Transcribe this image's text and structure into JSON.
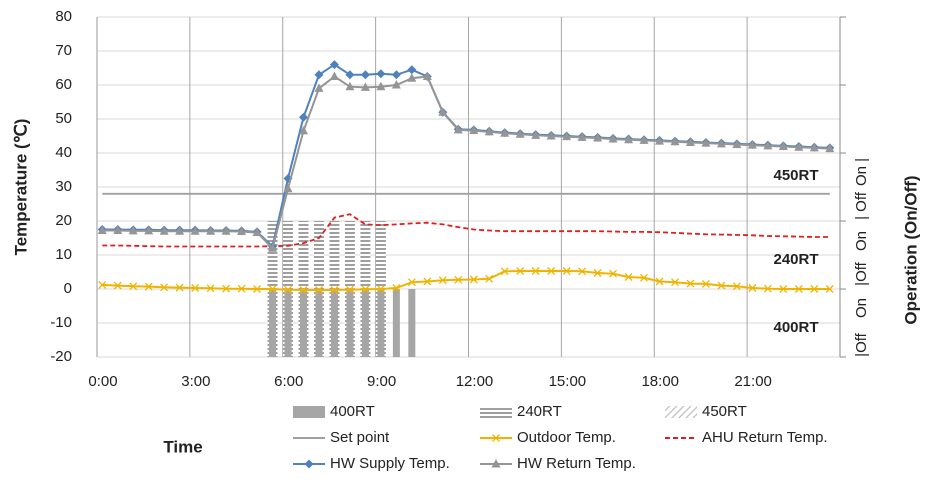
{
  "chart_data": {
    "type": "line",
    "x_label": "Time",
    "y_label": "Temperature (℃)",
    "y2_label": "Operation (On/Off)",
    "y2_labels": [
      "|Off",
      "On",
      "|Off",
      "On",
      "| Off",
      "On |"
    ],
    "annotations": [
      "450RT",
      "240RT",
      "400RT"
    ],
    "xlim": [
      0,
      24
    ],
    "xticks": [
      {
        "value": 0,
        "label": "0:00"
      },
      {
        "value": 3,
        "label": "3:00"
      },
      {
        "value": 6,
        "label": "6:00"
      },
      {
        "value": 9,
        "label": "9:00"
      },
      {
        "value": 12,
        "label": "12:00"
      },
      {
        "value": 15,
        "label": "15:00"
      },
      {
        "value": 18,
        "label": "18:00"
      },
      {
        "value": 21,
        "label": "21:00"
      }
    ],
    "ylim": [
      -20,
      80
    ],
    "yticks": [
      -20,
      -10,
      0,
      10,
      20,
      30,
      40,
      50,
      60,
      70,
      80
    ],
    "grid": true,
    "x": [
      0.17,
      0.67,
      1.17,
      1.67,
      2.17,
      2.67,
      3.17,
      3.67,
      4.17,
      4.67,
      5.17,
      5.67,
      6.17,
      6.67,
      7.17,
      7.67,
      8.17,
      8.67,
      9.17,
      9.67,
      10.17,
      10.67,
      11.17,
      11.67,
      12.17,
      12.67,
      13.17,
      13.67,
      14.17,
      14.67,
      15.17,
      15.67,
      16.17,
      16.67,
      17.17,
      17.67,
      18.17,
      18.67,
      19.17,
      19.67,
      20.17,
      20.67,
      21.17,
      21.67,
      22.17,
      22.67,
      23.17,
      23.67
    ],
    "series": [
      {
        "name": "400RT",
        "type": "bar",
        "pattern": "solid",
        "color": "#a6a6a6",
        "values": [
          null,
          null,
          null,
          null,
          null,
          null,
          null,
          null,
          null,
          null,
          null,
          0,
          0,
          0,
          0,
          0,
          0,
          0,
          0,
          0,
          0,
          null,
          null,
          null,
          null,
          null,
          null,
          null,
          null,
          null,
          null,
          null,
          null,
          null,
          null,
          null,
          null,
          null,
          null,
          null,
          null,
          null,
          null,
          null,
          null,
          null,
          null,
          null
        ]
      },
      {
        "name": "240RT",
        "type": "bar",
        "pattern": "horizontal",
        "color": "#7f7f7f",
        "values": [
          null,
          null,
          null,
          null,
          null,
          null,
          null,
          null,
          null,
          null,
          null,
          20,
          20,
          20,
          20,
          20,
          20,
          20,
          20,
          null,
          null,
          null,
          null,
          null,
          null,
          null,
          null,
          null,
          null,
          null,
          null,
          null,
          null,
          null,
          null,
          null,
          null,
          null,
          null,
          null,
          null,
          null,
          null,
          null,
          null,
          null,
          null,
          null
        ]
      },
      {
        "name": "450RT",
        "type": "bar",
        "pattern": "diagonal",
        "color": "#bfbfbf",
        "values": [
          null,
          null,
          null,
          null,
          null,
          null,
          null,
          null,
          null,
          null,
          null,
          null,
          null,
          null,
          null,
          null,
          null,
          null,
          null,
          null,
          null,
          null,
          null,
          null,
          null,
          null,
          null,
          null,
          null,
          null,
          null,
          null,
          null,
          null,
          null,
          null,
          null,
          null,
          null,
          null,
          null,
          null,
          null,
          null,
          null,
          null,
          null,
          null
        ]
      },
      {
        "name": "Set point",
        "type": "line",
        "color": "#a0a0a0",
        "values": [
          28,
          28,
          28,
          28,
          28,
          28,
          28,
          28,
          28,
          28,
          28,
          28,
          28,
          28,
          28,
          28,
          28,
          28,
          28,
          28,
          28,
          28,
          28,
          28,
          28,
          28,
          28,
          28,
          28,
          28,
          28,
          28,
          28,
          28,
          28,
          28,
          28,
          28,
          28,
          28,
          28,
          28,
          28,
          28,
          28,
          28,
          28,
          28
        ]
      },
      {
        "name": "Outdoor Temp.",
        "type": "line",
        "color": "#f0b400",
        "marker": "x",
        "values": [
          1.2,
          1.0,
          0.8,
          0.7,
          0.5,
          0.4,
          0.3,
          0.2,
          0.1,
          0.1,
          0.0,
          0.0,
          -0.2,
          -0.3,
          -0.3,
          -0.3,
          -0.2,
          -0.1,
          0.0,
          0.3,
          2.0,
          2.2,
          2.6,
          2.7,
          2.8,
          3.0,
          5.2,
          5.3,
          5.3,
          5.3,
          5.3,
          5.2,
          4.7,
          4.5,
          3.5,
          3.3,
          2.2,
          2.0,
          1.6,
          1.5,
          1.0,
          0.8,
          0.3,
          0.1,
          0.0,
          0.0,
          0.0,
          0.0
        ]
      },
      {
        "name": "AHU Return Temp.",
        "type": "line",
        "color": "#e02020",
        "dash": true,
        "values": [
          12.8,
          12.8,
          12.7,
          12.6,
          12.5,
          12.5,
          12.5,
          12.5,
          12.5,
          12.5,
          12.5,
          12.6,
          12.7,
          13.5,
          15,
          21,
          22,
          19,
          18.8,
          19,
          19.3,
          19.5,
          19,
          18.2,
          17.5,
          17.2,
          17,
          17,
          17,
          17,
          17,
          17,
          17,
          16.9,
          16.8,
          16.8,
          16.7,
          16.5,
          16.3,
          16.1,
          16,
          15.9,
          15.8,
          15.6,
          15.5,
          15.4,
          15.3,
          15.3
        ]
      },
      {
        "name": "HW Supply Temp.",
        "type": "line",
        "color": "#4f81bd",
        "marker": "diamond",
        "values": [
          17.5,
          17.5,
          17.4,
          17.4,
          17.3,
          17.3,
          17.3,
          17.2,
          17.2,
          17.1,
          16.8,
          12.5,
          32.5,
          50.5,
          63,
          66,
          63,
          63,
          63.3,
          63,
          64.5,
          62.5,
          52,
          47,
          46.8,
          46.4,
          46,
          45.7,
          45.4,
          45.2,
          45,
          44.8,
          44.6,
          44.3,
          44.1,
          43.9,
          43.7,
          43.5,
          43.3,
          43.1,
          42.9,
          42.7,
          42.5,
          42.3,
          42.1,
          41.9,
          41.7,
          41.5
        ]
      },
      {
        "name": "HW Return Temp.",
        "type": "line",
        "color": "#959595",
        "marker": "triangle",
        "values": [
          17.2,
          17.2,
          17.1,
          17.1,
          17,
          17,
          17,
          17,
          17,
          16.9,
          16.6,
          12,
          29.5,
          46.5,
          59,
          62.5,
          59.5,
          59.3,
          59.5,
          60,
          62,
          62.5,
          52,
          46.8,
          46.6,
          46.2,
          45.8,
          45.5,
          45.2,
          45,
          44.8,
          44.6,
          44.4,
          44.1,
          43.9,
          43.7,
          43.5,
          43.3,
          43.1,
          42.9,
          42.7,
          42.5,
          42.3,
          42.1,
          41.9,
          41.7,
          41.5,
          41.3
        ]
      }
    ]
  }
}
